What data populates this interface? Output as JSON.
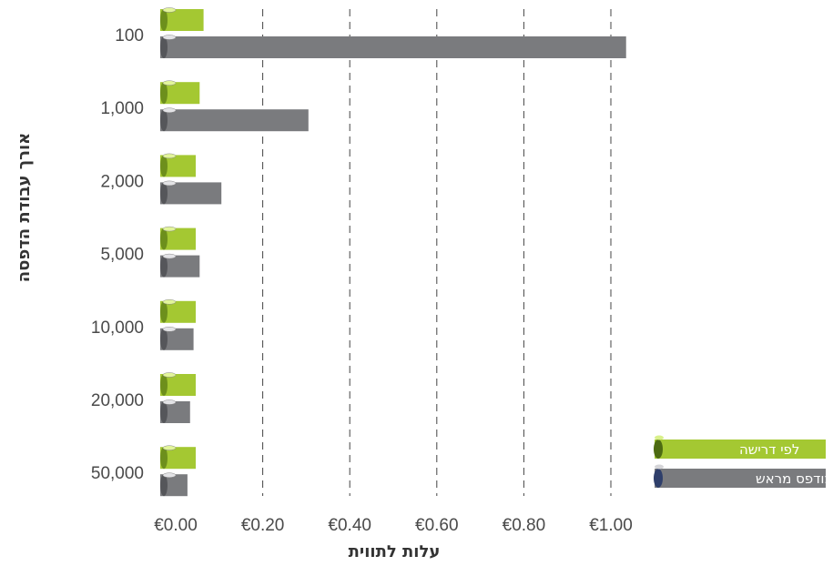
{
  "chart_data": {
    "type": "bar",
    "orientation": "horizontal",
    "categories": [
      "100",
      "1,000",
      "2,000",
      "5,000",
      "10,000",
      "20,000",
      "50,000"
    ],
    "series": [
      {
        "name": "לפי דרישה",
        "color": "#a4c832",
        "values": [
          0.064,
          0.055,
          0.046,
          0.046,
          0.046,
          0.046,
          0.046
        ]
      },
      {
        "name": "מודפס מראש",
        "color": "#7a7b7e",
        "values": [
          1.035,
          0.305,
          0.105,
          0.055,
          0.041,
          0.033,
          0.027
        ]
      }
    ],
    "xlabel": "עלות לתווית",
    "ylabel": "אורך עבודת הדפסה",
    "xticks": [
      "€0.00",
      "€0.20",
      "€0.40",
      "€0.60",
      "€0.80",
      "€1.00"
    ],
    "xtick_values": [
      0,
      0.2,
      0.4,
      0.6,
      0.8,
      1.0
    ],
    "xlim": [
      0,
      1.1
    ],
    "grid": "vertical dashed",
    "legend_position": "right"
  }
}
